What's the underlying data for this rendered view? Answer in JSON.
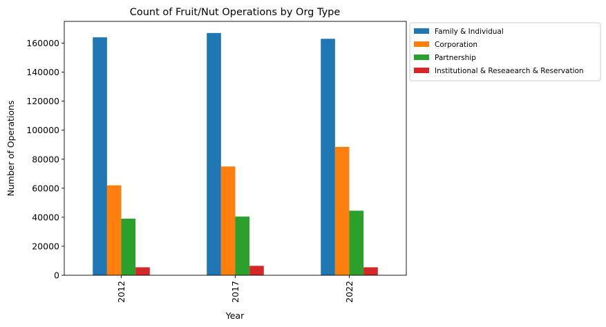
{
  "chart_data": {
    "type": "bar",
    "title": "Count of Fruit/Nut Operations by Org Type",
    "xlabel": "Year",
    "ylabel": "Number of Operations",
    "categories": [
      "2012",
      "2017",
      "2022"
    ],
    "series": [
      {
        "name": "Family & Individual",
        "color": "#1f77b4",
        "values": [
          164000,
          167000,
          163000
        ]
      },
      {
        "name": "Corporation",
        "color": "#ff7f0e",
        "values": [
          62000,
          75000,
          88500
        ]
      },
      {
        "name": "Partnership",
        "color": "#2ca02c",
        "values": [
          39000,
          40500,
          44500
        ]
      },
      {
        "name": "Institutional & Reseaearch & Reservation",
        "color": "#d62728",
        "values": [
          5500,
          6500,
          5500
        ]
      }
    ],
    "ylim": [
      0,
      175000
    ],
    "yticks": [
      0,
      20000,
      40000,
      60000,
      80000,
      100000,
      120000,
      140000,
      160000
    ],
    "grid": false,
    "legend_position": "outside-top-right"
  }
}
